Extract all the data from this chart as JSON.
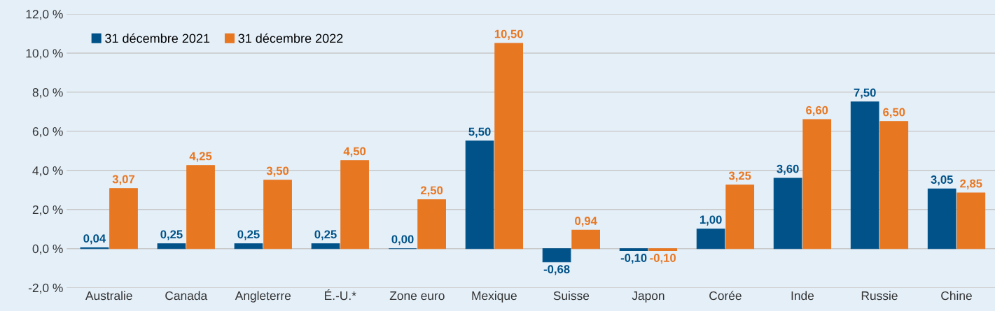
{
  "chart_data": {
    "type": "bar",
    "categories": [
      "Australie",
      "Canada",
      "Angleterre",
      "É.-U.*",
      "Zone euro",
      "Mexique",
      "Suisse",
      "Japon",
      "Corée",
      "Inde",
      "Russie",
      "Chine"
    ],
    "series": [
      {
        "name": "31 décembre 2021",
        "color": "#005288",
        "values": [
          0.04,
          0.25,
          0.25,
          0.25,
          0.0,
          5.5,
          -0.68,
          -0.1,
          1.0,
          3.6,
          7.5,
          3.05
        ],
        "value_labels": [
          "0,04",
          "0,25",
          "0,25",
          "0,25",
          "0,00",
          "5,50",
          "-0,68",
          "-0,10",
          "1,00",
          "3,60",
          "7,50",
          "3,05"
        ]
      },
      {
        "name": "31 décembre 2022",
        "color": "#e87722",
        "values": [
          3.07,
          4.25,
          3.5,
          4.5,
          2.5,
          10.5,
          0.94,
          -0.1,
          3.25,
          6.6,
          6.5,
          2.85
        ],
        "value_labels": [
          "3,07",
          "4,25",
          "3,50",
          "4,50",
          "2,50",
          "10,50",
          "0,94",
          "-0,10",
          "3,25",
          "6,60",
          "6,50",
          "2,85"
        ]
      }
    ],
    "ylim": [
      -2,
      12
    ],
    "yticks": [
      {
        "value": -2,
        "label": "-2,0 %"
      },
      {
        "value": 0,
        "label": "0,0 %"
      },
      {
        "value": 2,
        "label": "2,0 %"
      },
      {
        "value": 4,
        "label": "4,0 %"
      },
      {
        "value": 6,
        "label": "6,0 %"
      },
      {
        "value": 8,
        "label": "8,0 %"
      },
      {
        "value": 10,
        "label": "10,0 %"
      },
      {
        "value": 12,
        "label": "12,0 %"
      }
    ],
    "grid": "y",
    "legend": "top left"
  }
}
